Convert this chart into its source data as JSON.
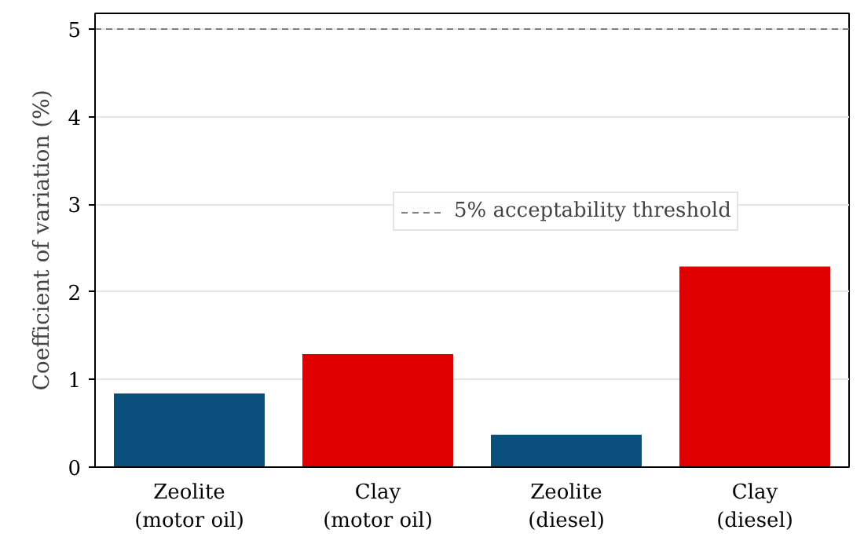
{
  "chart_data": {
    "type": "bar",
    "ylabel": "Coefficient of variation (%)",
    "categories": [
      "Zeolite\n(motor oil)",
      "Clay\n(motor oil)",
      "Zeolite\n(diesel)",
      "Clay\n(diesel)"
    ],
    "values": [
      0.84,
      1.29,
      0.37,
      2.29
    ],
    "colors": [
      "#0b4f7c",
      "#e00000",
      "#0b4f7c",
      "#e00000"
    ],
    "ylim": [
      0,
      5.18
    ],
    "yticks": [
      0,
      1,
      2,
      3,
      4,
      5
    ],
    "grid": "y",
    "legend": "right",
    "ref_lines": [
      {
        "axis": "y",
        "value": 5,
        "label": "5% acceptability threshold",
        "color": "#808080",
        "line_style": "dashed"
      }
    ]
  }
}
